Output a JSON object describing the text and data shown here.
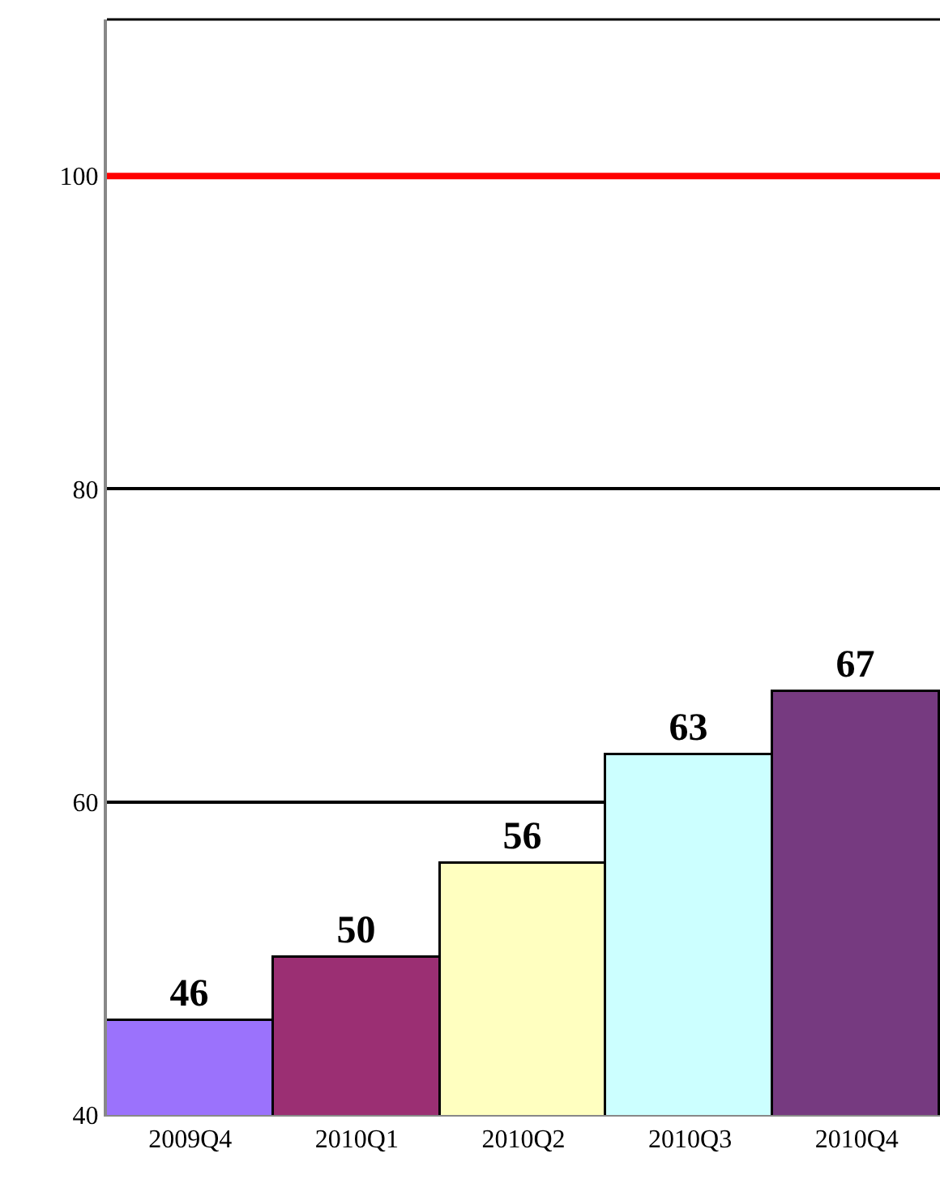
{
  "chart_data": {
    "type": "bar",
    "categories": [
      "2009Q4",
      "2010Q1",
      "2010Q2",
      "2010Q3",
      "2010Q4"
    ],
    "values": [
      46,
      50,
      56,
      63,
      67
    ],
    "colors": [
      "#9b72fc",
      "#9b2f73",
      "#ffffc0",
      "#ccffff",
      "#763a80"
    ],
    "ylim": [
      40,
      110
    ],
    "yticks": [
      40,
      60,
      80,
      100
    ],
    "grid": "y",
    "data_labels": true,
    "ref_lines": [
      {
        "axis": "y",
        "value": 100,
        "color": "#ff0000"
      }
    ]
  }
}
